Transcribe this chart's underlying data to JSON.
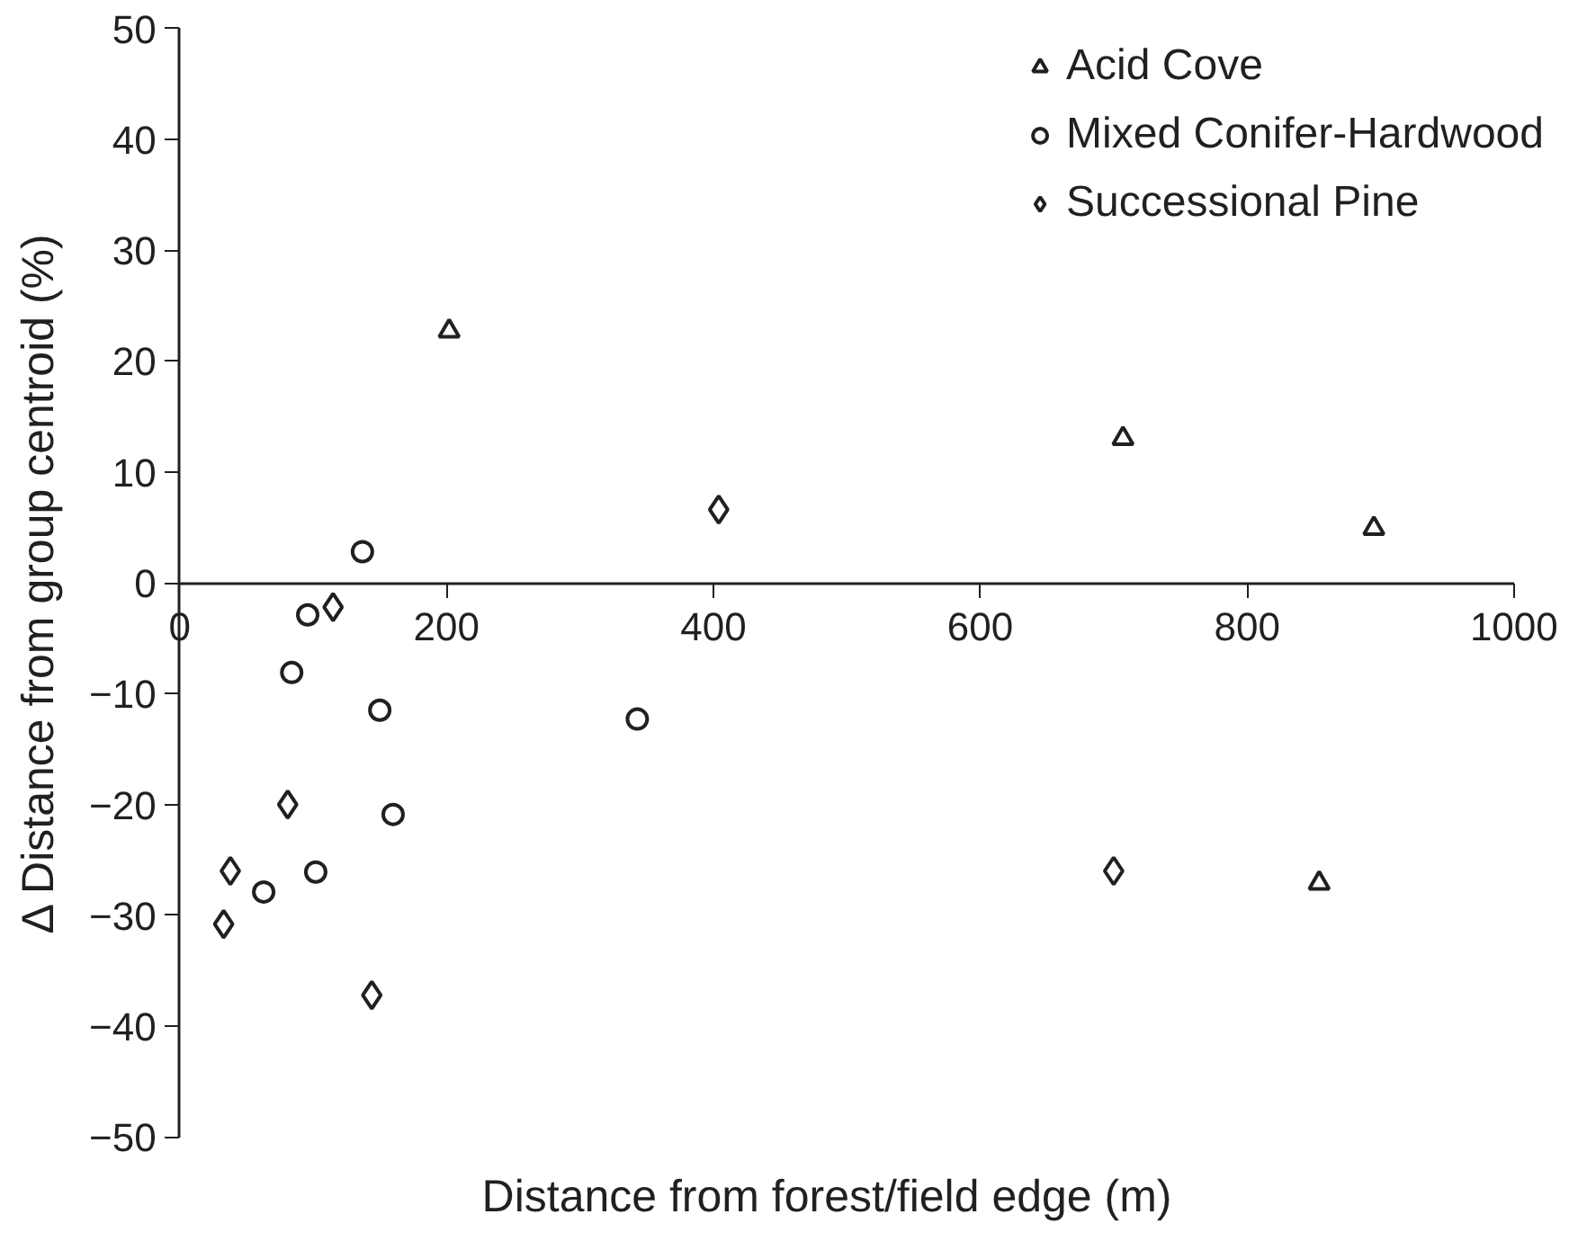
{
  "chart_data": {
    "type": "scatter",
    "xlabel": "Distance from forest/field edge (m)",
    "ylabel": "Δ Distance from group centroid (%)",
    "xlim": [
      0,
      1000
    ],
    "ylim": [
      -50,
      50
    ],
    "xticks": [
      0,
      200,
      400,
      600,
      800,
      1000
    ],
    "yticks": [
      -50,
      -40,
      -30,
      -20,
      -10,
      0,
      10,
      20,
      30,
      40,
      50
    ],
    "grid": false,
    "legend": "top right",
    "series": [
      {
        "name": "Acid Cove",
        "color": "#231f20",
        "marker": "triangle",
        "x": [
          202,
          707,
          895,
          854
        ],
        "values": [
          22.7,
          13.0,
          4.9,
          -27.1
        ]
      },
      {
        "name": "Mixed Conifer-Hardwood",
        "color": "#231f20",
        "marker": "circle",
        "x": [
          137,
          96,
          84,
          150,
          343,
          160,
          63,
          102
        ],
        "values": [
          2.8,
          -2.9,
          -8.1,
          -11.5,
          -12.3,
          -20.9,
          -27.9,
          -26.1
        ]
      },
      {
        "name": "Successional Pine",
        "color": "#231f20",
        "marker": "diamond",
        "x": [
          404,
          115,
          700,
          81,
          38,
          33,
          144
        ],
        "values": [
          6.6,
          -2.2,
          -26.0,
          -20.0,
          -26.0,
          -30.8,
          -37.2
        ]
      }
    ]
  }
}
